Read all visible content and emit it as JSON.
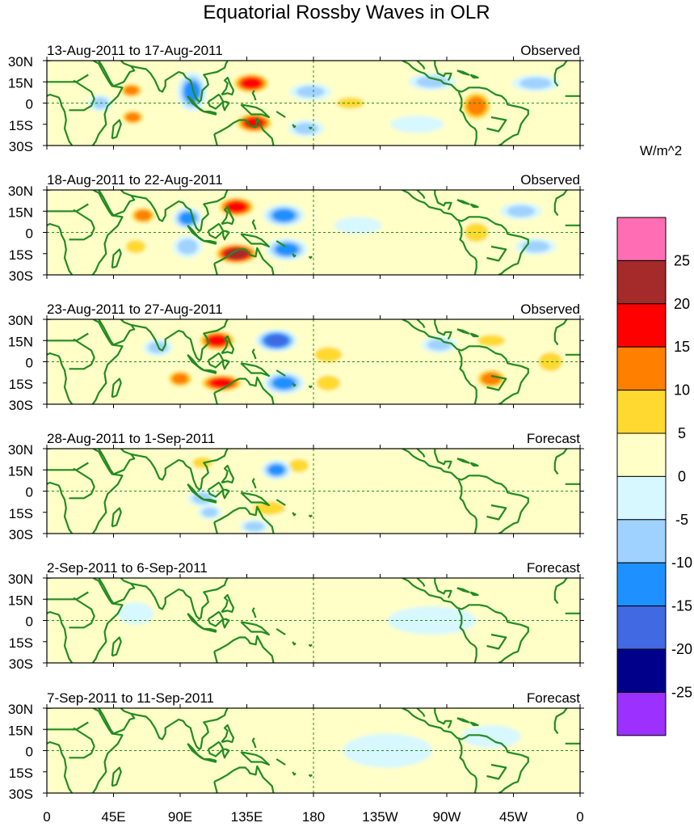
{
  "chart_data": {
    "type": "heatmap",
    "title": "Equatorial Rossby Waves in OLR",
    "units": "W/m^2",
    "x_tick_labels": [
      "0",
      "45E",
      "90E",
      "135E",
      "180",
      "135W",
      "90W",
      "45W",
      "0"
    ],
    "y_tick_labels": [
      "30N",
      "15N",
      "0",
      "15S",
      "30S"
    ],
    "xlim": [
      0,
      360
    ],
    "ylim": [
      -30,
      30
    ],
    "color_levels": [
      -25,
      -20,
      -15,
      -10,
      -5,
      0,
      5,
      10,
      15,
      20,
      25
    ],
    "colorbar_labels": [
      "25",
      "20",
      "15",
      "10",
      "5",
      "0",
      "-5",
      "-10",
      "-15",
      "-20",
      "-25"
    ],
    "colors": [
      "#9b30ff",
      "#00008b",
      "#4169e1",
      "#1e90ff",
      "#a0d2ff",
      "#d8f8ff",
      "#ffffc8",
      "#ffd92f",
      "#ff7f00",
      "#ff0000",
      "#a52a2a",
      "#ff6eb4"
    ],
    "coast_color": "#228b22",
    "panels": [
      {
        "date_range": "13-Aug-2011 to 17-Aug-2011",
        "status": "Observed",
        "anomalies": [
          {
            "lon": 138,
            "lat": 14,
            "rlon": 14,
            "rlat": 8,
            "value": 18
          },
          {
            "lon": 140,
            "lat": -14,
            "rlon": 14,
            "rlat": 8,
            "value": 20
          },
          {
            "lon": 98,
            "lat": 8,
            "rlon": 10,
            "rlat": 14,
            "value": -12
          },
          {
            "lon": 178,
            "lat": 8,
            "rlon": 14,
            "rlat": 6,
            "value": -8
          },
          {
            "lon": 175,
            "lat": -18,
            "rlon": 12,
            "rlat": 6,
            "value": -7
          },
          {
            "lon": 57,
            "lat": 9,
            "rlon": 9,
            "rlat": 6,
            "value": 12
          },
          {
            "lon": 58,
            "lat": -10,
            "rlon": 9,
            "rlat": 6,
            "value": 11
          },
          {
            "lon": 36,
            "lat": 0,
            "rlon": 8,
            "rlat": 6,
            "value": -8
          },
          {
            "lon": 205,
            "lat": 0,
            "rlon": 14,
            "rlat": 6,
            "value": 6
          },
          {
            "lon": 290,
            "lat": -2,
            "rlon": 12,
            "rlat": 12,
            "value": 12
          },
          {
            "lon": 260,
            "lat": 15,
            "rlon": 16,
            "rlat": 6,
            "value": -6
          },
          {
            "lon": 330,
            "lat": 14,
            "rlon": 16,
            "rlat": 6,
            "value": -6
          },
          {
            "lon": 250,
            "lat": -15,
            "rlon": 18,
            "rlat": 6,
            "value": -5
          }
        ]
      },
      {
        "date_range": "18-Aug-2011 to 22-Aug-2011",
        "status": "Observed",
        "anomalies": [
          {
            "lon": 128,
            "lat": 18,
            "rlon": 14,
            "rlat": 8,
            "value": 20
          },
          {
            "lon": 128,
            "lat": -15,
            "rlon": 16,
            "rlat": 8,
            "value": 21
          },
          {
            "lon": 160,
            "lat": 12,
            "rlon": 14,
            "rlat": 8,
            "value": -14
          },
          {
            "lon": 162,
            "lat": -12,
            "rlon": 14,
            "rlat": 8,
            "value": -14
          },
          {
            "lon": 95,
            "lat": 10,
            "rlon": 10,
            "rlat": 8,
            "value": -11
          },
          {
            "lon": 95,
            "lat": -10,
            "rlon": 10,
            "rlat": 8,
            "value": -10
          },
          {
            "lon": 65,
            "lat": 12,
            "rlon": 10,
            "rlat": 7,
            "value": 11
          },
          {
            "lon": 60,
            "lat": -10,
            "rlon": 10,
            "rlat": 7,
            "value": 9
          },
          {
            "lon": 290,
            "lat": 0,
            "rlon": 12,
            "rlat": 10,
            "value": 9
          },
          {
            "lon": 210,
            "lat": 5,
            "rlon": 16,
            "rlat": 6,
            "value": -5
          },
          {
            "lon": 320,
            "lat": 15,
            "rlon": 14,
            "rlat": 6,
            "value": -8
          },
          {
            "lon": 330,
            "lat": -10,
            "rlon": 14,
            "rlat": 6,
            "value": -6
          }
        ]
      },
      {
        "date_range": "23-Aug-2011 to 27-Aug-2011",
        "status": "Observed",
        "anomalies": [
          {
            "lon": 115,
            "lat": 15,
            "rlon": 14,
            "rlat": 8,
            "value": 19
          },
          {
            "lon": 118,
            "lat": -15,
            "rlon": 16,
            "rlat": 7,
            "value": 17
          },
          {
            "lon": 155,
            "lat": 15,
            "rlon": 14,
            "rlat": 8,
            "value": -16
          },
          {
            "lon": 160,
            "lat": -15,
            "rlon": 14,
            "rlat": 8,
            "value": -15
          },
          {
            "lon": 90,
            "lat": -12,
            "rlon": 10,
            "rlat": 7,
            "value": 12
          },
          {
            "lon": 75,
            "lat": 10,
            "rlon": 10,
            "rlat": 6,
            "value": -8
          },
          {
            "lon": 190,
            "lat": 5,
            "rlon": 14,
            "rlat": 8,
            "value": 7
          },
          {
            "lon": 190,
            "lat": -15,
            "rlon": 12,
            "rlat": 8,
            "value": 6
          },
          {
            "lon": 300,
            "lat": 15,
            "rlon": 14,
            "rlat": 6,
            "value": 9
          },
          {
            "lon": 300,
            "lat": -12,
            "rlon": 12,
            "rlat": 8,
            "value": 11
          },
          {
            "lon": 265,
            "lat": 12,
            "rlon": 12,
            "rlat": 6,
            "value": -7
          },
          {
            "lon": 340,
            "lat": 0,
            "rlon": 12,
            "rlat": 10,
            "value": 8
          }
        ]
      },
      {
        "date_range": "28-Aug-2011 to 1-Sep-2011",
        "status": "Forecast",
        "anomalies": [
          {
            "lon": 170,
            "lat": 18,
            "rlon": 10,
            "rlat": 7,
            "value": 9
          },
          {
            "lon": 155,
            "lat": 15,
            "rlon": 10,
            "rlat": 7,
            "value": -12
          },
          {
            "lon": 105,
            "lat": 20,
            "rlon": 10,
            "rlat": 6,
            "value": 7
          },
          {
            "lon": 105,
            "lat": -5,
            "rlon": 10,
            "rlat": 6,
            "value": -6
          },
          {
            "lon": 150,
            "lat": -12,
            "rlon": 16,
            "rlat": 7,
            "value": 8
          },
          {
            "lon": 140,
            "lat": -25,
            "rlon": 10,
            "rlat": 5,
            "value": -8
          },
          {
            "lon": 110,
            "lat": -15,
            "rlon": 8,
            "rlat": 5,
            "value": -6
          },
          {
            "lon": 60,
            "lat": 5,
            "rlon": 10,
            "rlat": 8,
            "value": 4
          },
          {
            "lon": 290,
            "lat": 0,
            "rlon": 14,
            "rlat": 8,
            "value": 3
          }
        ]
      },
      {
        "date_range": "2-Sep-2011 to 6-Sep-2011",
        "status": "Forecast",
        "anomalies": [
          {
            "lon": 150,
            "lat": 0,
            "rlon": 20,
            "rlat": 8,
            "value": 3
          },
          {
            "lon": 170,
            "lat": 18,
            "rlon": 12,
            "rlat": 6,
            "value": 4
          },
          {
            "lon": 60,
            "lat": 5,
            "rlon": 12,
            "rlat": 8,
            "value": -3
          },
          {
            "lon": 260,
            "lat": 0,
            "rlon": 30,
            "rlat": 10,
            "value": -3
          },
          {
            "lon": 330,
            "lat": 5,
            "rlon": 20,
            "rlat": 10,
            "value": 3
          }
        ]
      },
      {
        "date_range": "7-Sep-2011 to 11-Sep-2011",
        "status": "Forecast",
        "anomalies": [
          {
            "lon": 160,
            "lat": 10,
            "rlon": 25,
            "rlat": 10,
            "value": 3
          },
          {
            "lon": 100,
            "lat": -10,
            "rlon": 15,
            "rlat": 8,
            "value": 3
          },
          {
            "lon": 230,
            "lat": 0,
            "rlon": 30,
            "rlat": 12,
            "value": -3
          },
          {
            "lon": 300,
            "lat": 10,
            "rlon": 20,
            "rlat": 8,
            "value": -3
          },
          {
            "lon": 60,
            "lat": 0,
            "rlon": 15,
            "rlat": 10,
            "value": 3
          }
        ]
      }
    ]
  }
}
